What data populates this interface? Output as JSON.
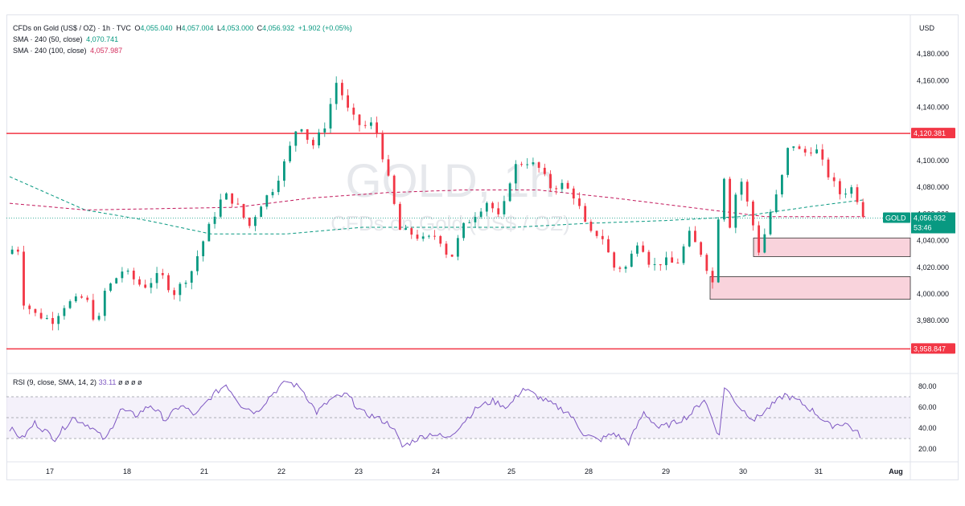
{
  "legend": {
    "symbol": "CFDs on Gold (US$ / OZ) · 1h · TVC",
    "open_label": "O",
    "open": "4,055.040",
    "high_label": "H",
    "high": "4,057.004",
    "low_label": "L",
    "low": "4,053.000",
    "close_label": "C",
    "close": "4,056.932",
    "change": "+1.902 (+0.05%)",
    "sma50_label": "SMA · 240 (50, close)",
    "sma50_value": "4,070.741",
    "sma100_label": "SMA · 240 (100, close)",
    "sma100_value": "4,057.987"
  },
  "currency": "USD",
  "watermark": {
    "ticker": "GOLD, 1h",
    "name": "CFDs on Gold (US$ / OZ)"
  },
  "price_axis": {
    "ticks": [
      "4,180.000",
      "4,160.000",
      "4,140.000",
      "4,100.000",
      "4,080.000",
      "4,060.000",
      "4,040.000",
      "4,020.000",
      "4,000.000",
      "3,980.000"
    ],
    "tick_values": [
      4180,
      4160,
      4140,
      4100,
      4080,
      4060,
      4040,
      4020,
      4000,
      3980
    ]
  },
  "time_axis": {
    "labels": [
      "17",
      "18",
      "21",
      "22",
      "23",
      "24",
      "25",
      "28",
      "29",
      "30",
      "31",
      "Aug"
    ]
  },
  "badges": {
    "resistance": "4,120.381",
    "support": "3,958.847",
    "symbol": "GOLD",
    "price": "4,056.932",
    "countdown": "53:46"
  },
  "rsi": {
    "title": "RSI (9, close, SMA, 14, 2)",
    "value": "33.11",
    "placeholders": [
      "ø",
      "ø",
      "ø",
      "ø"
    ],
    "ticks": [
      "80.00",
      "60.00",
      "40.00",
      "20.00"
    ],
    "tick_values": [
      80,
      60,
      40,
      20
    ]
  },
  "colors": {
    "up": "#089981",
    "down": "#f23645",
    "sma50": "#089981",
    "sma100": "#c2185b",
    "level_line": "#f23645",
    "zone_fill": "#f9d3dc",
    "rsi_line": "#7e57c2",
    "rsi_band": "#ede7f6"
  },
  "chart_data": {
    "type": "candlestick",
    "title": "CFDs on Gold (US$ / OZ) · 1h · TVC",
    "x_labels": [
      "17",
      "18",
      "21",
      "22",
      "23",
      "24",
      "25",
      "28",
      "29",
      "30",
      "31",
      "Aug"
    ],
    "ylim": [
      3955,
      4190
    ],
    "last": {
      "open": 4055.04,
      "high": 4057.004,
      "low": 4053.0,
      "close": 4056.932,
      "change": 1.902,
      "change_pct": 0.05
    },
    "levels": [
      4120.381,
      3958.847
    ],
    "zones": [
      {
        "low": 4028,
        "high": 4042
      },
      {
        "low": 3996,
        "high": 4013
      }
    ],
    "close_path": [
      [
        0,
        4030
      ],
      [
        3,
        4040
      ],
      [
        5,
        3995
      ],
      [
        10,
        3985
      ],
      [
        17,
        3980
      ],
      [
        22,
        3992
      ],
      [
        30,
        3998
      ],
      [
        35,
        3975
      ],
      [
        37,
        4000
      ],
      [
        45,
        4018
      ],
      [
        53,
        4005
      ],
      [
        60,
        4015
      ],
      [
        65,
        4000
      ],
      [
        72,
        4016
      ],
      [
        78,
        4045
      ],
      [
        85,
        4075
      ],
      [
        90,
        4068
      ],
      [
        95,
        4050
      ],
      [
        100,
        4068
      ],
      [
        105,
        4080
      ],
      [
        110,
        4102
      ],
      [
        115,
        4130
      ],
      [
        120,
        4110
      ],
      [
        125,
        4125
      ],
      [
        130,
        4160
      ],
      [
        135,
        4135
      ],
      [
        140,
        4125
      ],
      [
        145,
        4128
      ],
      [
        150,
        4090
      ],
      [
        155,
        4048
      ],
      [
        160,
        4045
      ],
      [
        165,
        4040
      ],
      [
        170,
        4045
      ],
      [
        175,
        4025
      ],
      [
        180,
        4050
      ],
      [
        185,
        4060
      ],
      [
        190,
        4070
      ],
      [
        195,
        4055
      ],
      [
        200,
        4095
      ],
      [
        205,
        4100
      ],
      [
        210,
        4095
      ],
      [
        215,
        4080
      ],
      [
        220,
        4082
      ],
      [
        225,
        4072
      ],
      [
        230,
        4045
      ],
      [
        235,
        4045
      ],
      [
        240,
        4020
      ],
      [
        245,
        4020
      ],
      [
        250,
        4042
      ],
      [
        255,
        4020
      ],
      [
        260,
        4025
      ],
      [
        265,
        4022
      ],
      [
        270,
        4045
      ],
      [
        275,
        4030
      ],
      [
        280,
        4005
      ],
      [
        283,
        4105
      ],
      [
        286,
        4050
      ],
      [
        290,
        4090
      ],
      [
        295,
        4055
      ],
      [
        298,
        4030
      ],
      [
        302,
        4060
      ],
      [
        306,
        4080
      ],
      [
        310,
        4115
      ],
      [
        315,
        4105
      ],
      [
        320,
        4110
      ],
      [
        325,
        4090
      ],
      [
        330,
        4075
      ],
      [
        335,
        4080
      ],
      [
        340,
        4056
      ]
    ],
    "sma50": [
      [
        0,
        4088
      ],
      [
        30,
        4063
      ],
      [
        55,
        4055
      ],
      [
        80,
        4045
      ],
      [
        110,
        4045
      ],
      [
        140,
        4050
      ],
      [
        170,
        4050
      ],
      [
        200,
        4050
      ],
      [
        230,
        4053
      ],
      [
        260,
        4055
      ],
      [
        290,
        4058
      ],
      [
        320,
        4066
      ],
      [
        340,
        4070.741
      ]
    ],
    "sma100": [
      [
        0,
        4068
      ],
      [
        30,
        4063
      ],
      [
        60,
        4064
      ],
      [
        90,
        4065
      ],
      [
        120,
        4072
      ],
      [
        150,
        4076
      ],
      [
        180,
        4078
      ],
      [
        210,
        4078
      ],
      [
        240,
        4072
      ],
      [
        270,
        4065
      ],
      [
        300,
        4058
      ],
      [
        320,
        4058
      ],
      [
        340,
        4057.987
      ]
    ],
    "rsi": [
      [
        0,
        40
      ],
      [
        5,
        30
      ],
      [
        10,
        45
      ],
      [
        18,
        30
      ],
      [
        25,
        50
      ],
      [
        32,
        42
      ],
      [
        38,
        28
      ],
      [
        44,
        58
      ],
      [
        50,
        52
      ],
      [
        56,
        62
      ],
      [
        62,
        48
      ],
      [
        68,
        62
      ],
      [
        74,
        52
      ],
      [
        80,
        70
      ],
      [
        86,
        82
      ],
      [
        92,
        62
      ],
      [
        98,
        55
      ],
      [
        104,
        72
      ],
      [
        110,
        85
      ],
      [
        116,
        78
      ],
      [
        122,
        55
      ],
      [
        128,
        68
      ],
      [
        134,
        72
      ],
      [
        140,
        55
      ],
      [
        146,
        50
      ],
      [
        152,
        42
      ],
      [
        156,
        22
      ],
      [
        162,
        30
      ],
      [
        168,
        35
      ],
      [
        174,
        30
      ],
      [
        180,
        45
      ],
      [
        186,
        60
      ],
      [
        192,
        66
      ],
      [
        198,
        60
      ],
      [
        204,
        78
      ],
      [
        210,
        70
      ],
      [
        216,
        62
      ],
      [
        222,
        55
      ],
      [
        228,
        35
      ],
      [
        234,
        28
      ],
      [
        240,
        35
      ],
      [
        246,
        26
      ],
      [
        252,
        55
      ],
      [
        258,
        40
      ],
      [
        264,
        45
      ],
      [
        270,
        52
      ],
      [
        276,
        68
      ],
      [
        282,
        32
      ],
      [
        284,
        80
      ],
      [
        290,
        60
      ],
      [
        296,
        48
      ],
      [
        302,
        60
      ],
      [
        308,
        72
      ],
      [
        314,
        65
      ],
      [
        320,
        55
      ],
      [
        326,
        42
      ],
      [
        332,
        45
      ],
      [
        338,
        33.11
      ]
    ],
    "rsi_ylim": [
      10,
      90
    ],
    "rsi_band": [
      30,
      70
    ]
  }
}
